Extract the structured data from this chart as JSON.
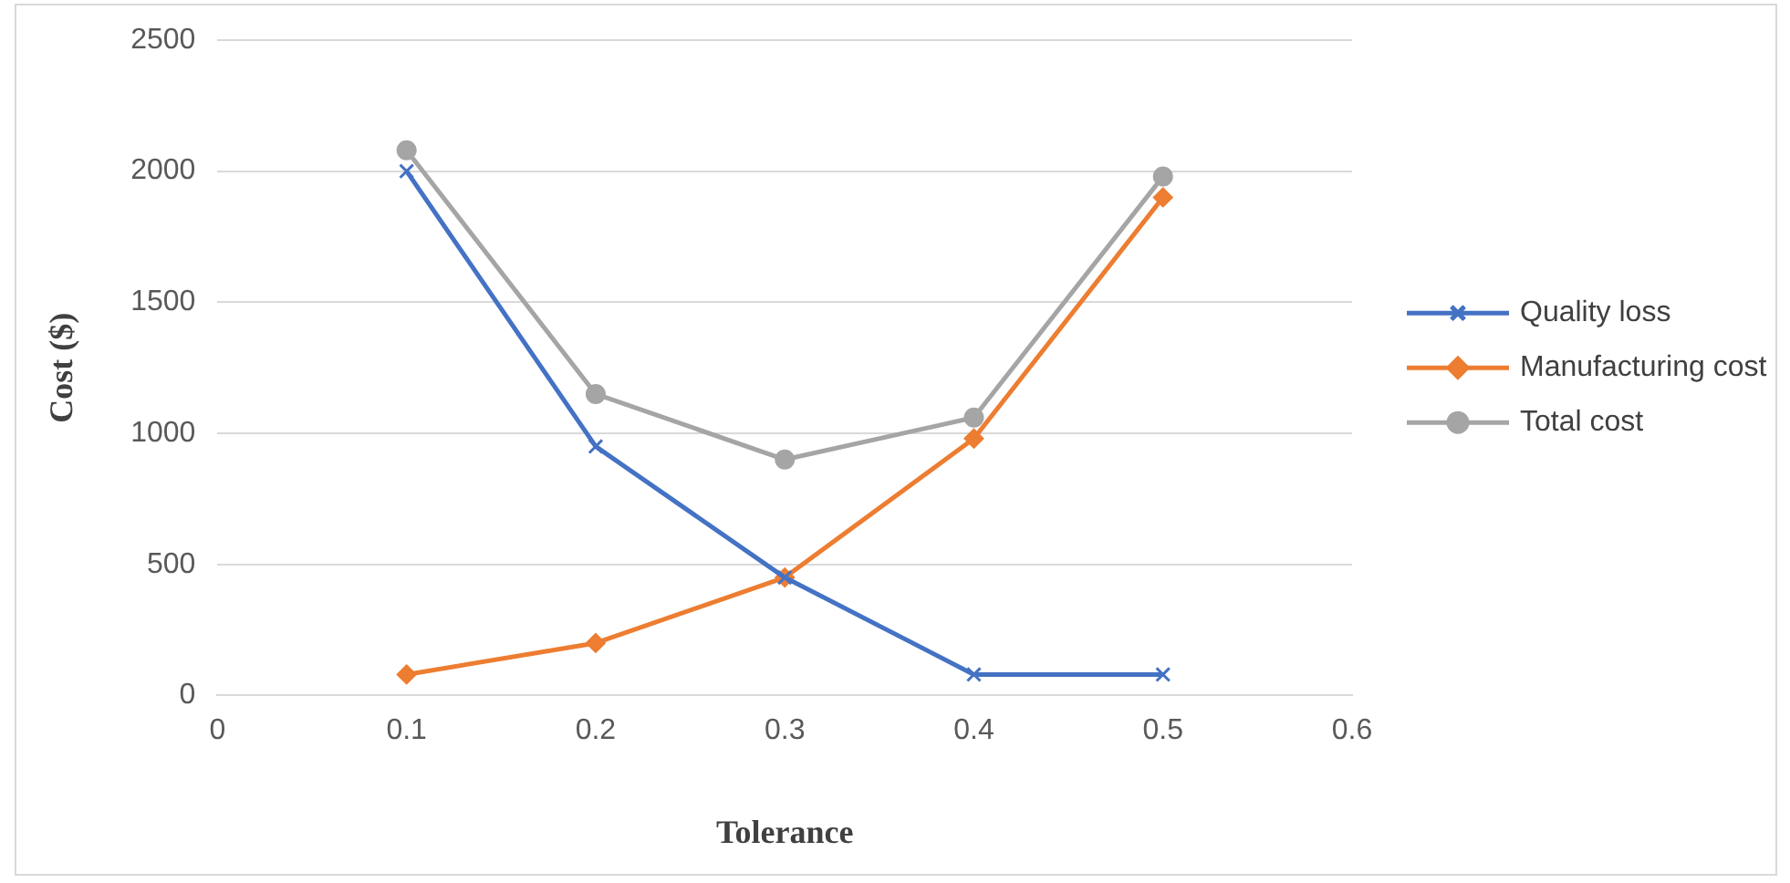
{
  "chart_data": {
    "type": "line",
    "xlabel": "Tolerance",
    "ylabel": "Cost ($)",
    "x": [
      0.1,
      0.2,
      0.3,
      0.4,
      0.5
    ],
    "xlim": [
      0,
      0.6
    ],
    "xticks": [
      0,
      0.1,
      0.2,
      0.3,
      0.4,
      0.5,
      0.6
    ],
    "ylim": [
      0,
      2500
    ],
    "yticks": [
      0,
      500,
      1000,
      1500,
      2000,
      2500
    ],
    "grid": "y",
    "legend": "right",
    "line_style": "solid",
    "series": [
      {
        "name": "Quality loss",
        "color": "#4472c4",
        "marker": "cross",
        "values": [
          2000,
          950,
          450,
          80,
          80
        ]
      },
      {
        "name": "Manufacturing cost",
        "color": "#ed7d31",
        "marker": "diamond",
        "values": [
          80,
          200,
          450,
          980,
          1900
        ]
      },
      {
        "name": "Total cost",
        "color": "#a5a5a5",
        "marker": "circle",
        "values": [
          2080,
          1150,
          900,
          1060,
          1980
        ]
      }
    ]
  }
}
